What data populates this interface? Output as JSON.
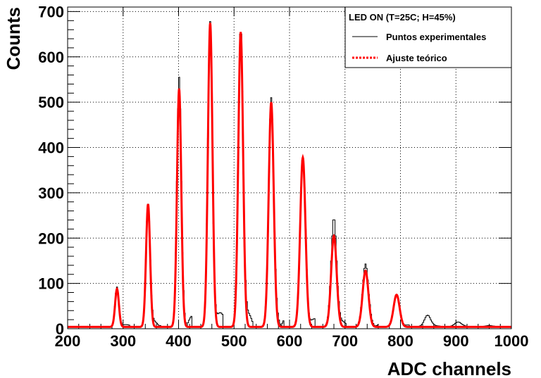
{
  "chart_data": {
    "type": "line",
    "xlabel": "ADC channels",
    "ylabel": "Counts",
    "xlim": [
      200,
      1000
    ],
    "ylim": [
      0,
      710
    ],
    "grid": true,
    "x_ticks": [
      200,
      300,
      400,
      500,
      600,
      700,
      800,
      900,
      1000
    ],
    "y_ticks": [
      0,
      100,
      200,
      300,
      400,
      500,
      600,
      700
    ],
    "legend": {
      "position": "top-right",
      "title": "LED ON (T=25C; H=45%)",
      "entries": [
        {
          "label": "Puntos experimentales",
          "series": "data"
        },
        {
          "label": "Ajuste teórico",
          "series": "fit"
        }
      ]
    },
    "series": [
      {
        "name": "Puntos experimentales",
        "style": "histogram",
        "color": "#000000",
        "peaks": [
          {
            "x": 289,
            "y": 92
          },
          {
            "x": 345,
            "y": 275
          },
          {
            "x": 401,
            "y": 555
          },
          {
            "x": 457,
            "y": 678
          },
          {
            "x": 512,
            "y": 668
          },
          {
            "x": 567,
            "y": 510
          },
          {
            "x": 624,
            "y": 380
          },
          {
            "x": 680,
            "y": 245
          },
          {
            "x": 737,
            "y": 143
          },
          {
            "x": 793,
            "y": 75
          },
          {
            "x": 849,
            "y": 30
          },
          {
            "x": 904,
            "y": 15
          },
          {
            "x": 960,
            "y": 7
          }
        ],
        "baseline": 5
      },
      {
        "name": "Ajuste teórico",
        "style": "dashed",
        "color": "#ff0000",
        "peaks": [
          {
            "x": 289,
            "y": 88
          },
          {
            "x": 345,
            "y": 275
          },
          {
            "x": 401,
            "y": 530
          },
          {
            "x": 457,
            "y": 675
          },
          {
            "x": 512,
            "y": 655
          },
          {
            "x": 567,
            "y": 500
          },
          {
            "x": 624,
            "y": 378
          },
          {
            "x": 680,
            "y": 205
          },
          {
            "x": 737,
            "y": 128
          },
          {
            "x": 793,
            "y": 75
          }
        ],
        "baseline": 4
      }
    ]
  }
}
